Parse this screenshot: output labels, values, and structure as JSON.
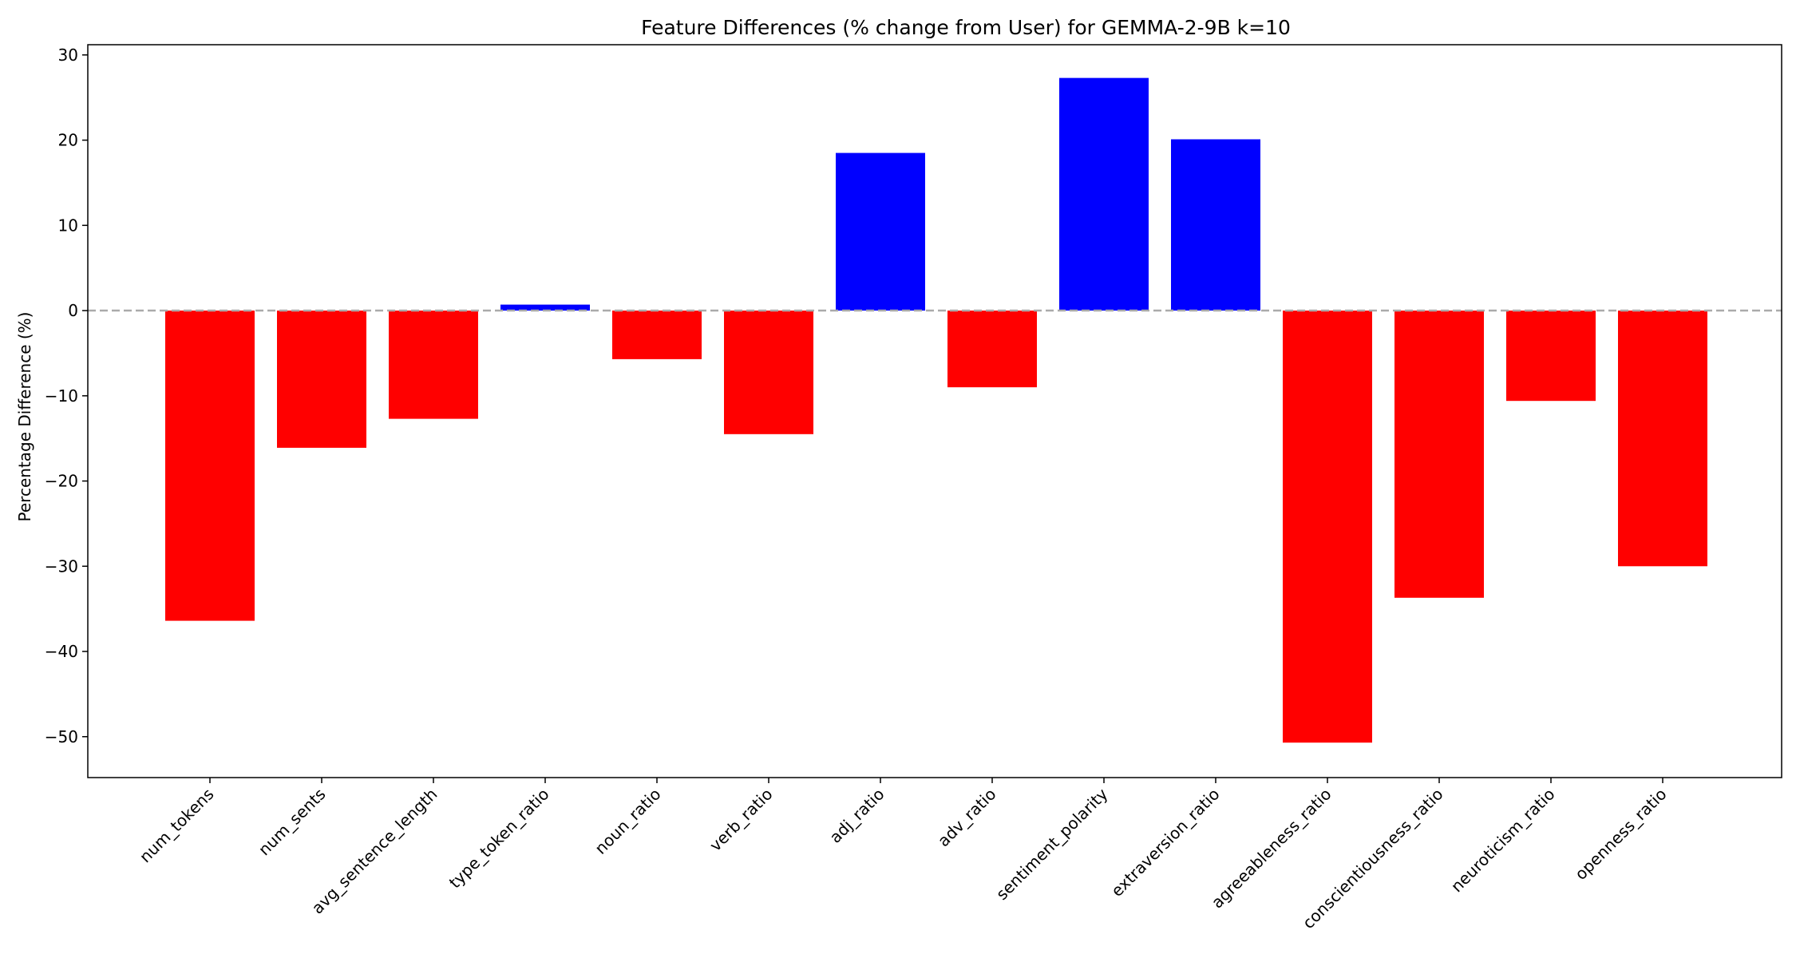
{
  "chart_data": {
    "type": "bar",
    "title": "Feature Differences (% change from User) for GEMMA-2-9B k=10",
    "xlabel": "",
    "ylabel": "Percentage Difference (%)",
    "categories": [
      "num_tokens",
      "num_sents",
      "avg_sentence_length",
      "type_token_ratio",
      "noun_ratio",
      "verb_ratio",
      "adj_ratio",
      "adv_ratio",
      "sentiment_polarity",
      "extraversion_ratio",
      "agreeableness_ratio",
      "conscientiousness_ratio",
      "neuroticism_ratio",
      "openness_ratio"
    ],
    "values": [
      -36.4,
      -16.1,
      -12.7,
      0.7,
      -5.7,
      -14.5,
      18.5,
      -9.0,
      27.3,
      20.1,
      -50.7,
      -33.7,
      -10.6,
      -30.0
    ],
    "yticks": [
      30,
      20,
      10,
      0,
      -10,
      -20,
      -30,
      -40,
      -50
    ],
    "ylim": [
      -54.8,
      31.2
    ],
    "grid": false,
    "legend": "none",
    "reference_line": {
      "value": 0,
      "style": "dashed",
      "color": "#aaaaaa"
    },
    "colors": {
      "positive": "#0000ff",
      "negative": "#ff0000",
      "axis": "#000000"
    }
  }
}
